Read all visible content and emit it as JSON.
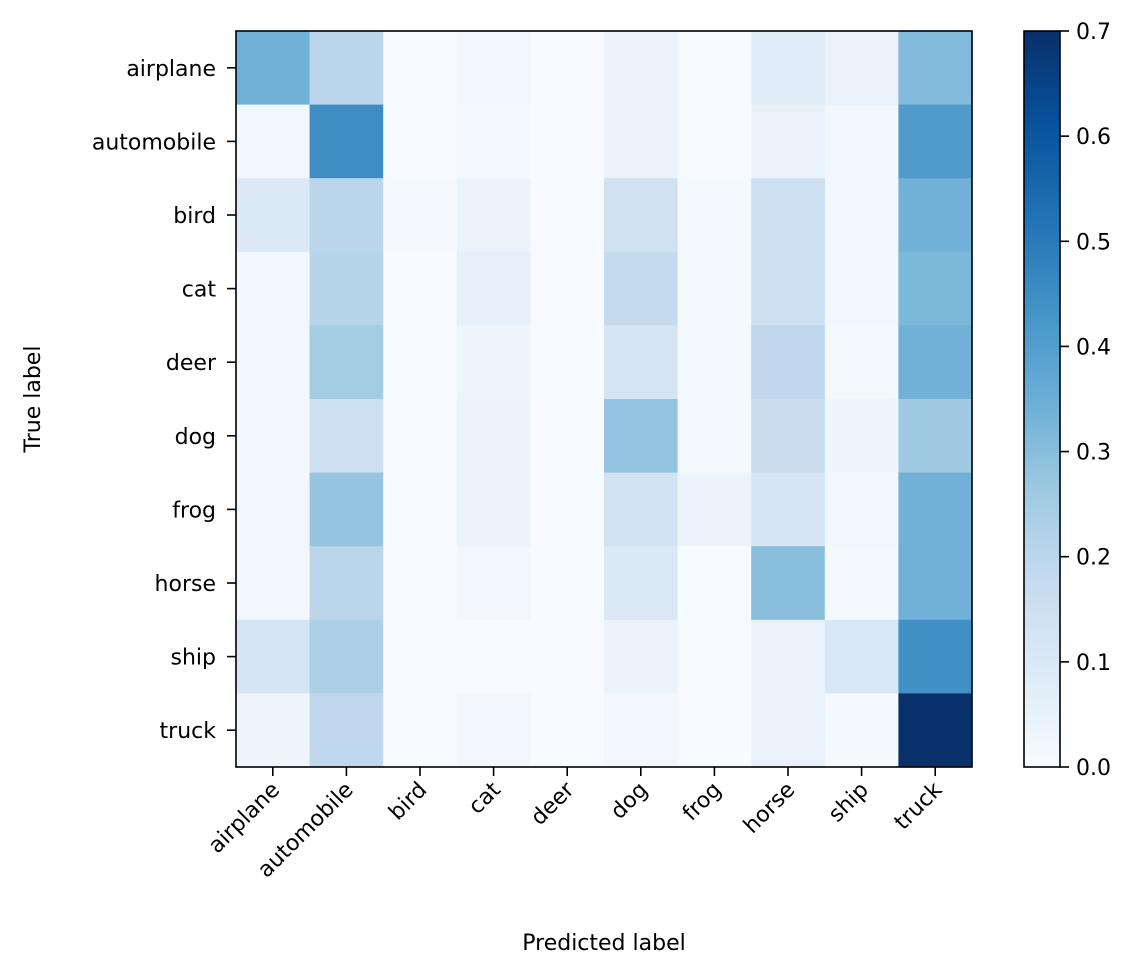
{
  "chart_data": {
    "type": "heatmap",
    "title": "",
    "xlabel": "Predicted label",
    "ylabel": "True label",
    "x_categories": [
      "airplane",
      "automobile",
      "bird",
      "cat",
      "deer",
      "dog",
      "frog",
      "horse",
      "ship",
      "truck"
    ],
    "y_categories": [
      "airplane",
      "automobile",
      "bird",
      "cat",
      "deer",
      "dog",
      "frog",
      "horse",
      "ship",
      "truck"
    ],
    "values": [
      [
        0.34,
        0.2,
        0.0,
        0.02,
        0.0,
        0.04,
        0.0,
        0.08,
        0.05,
        0.31
      ],
      [
        0.02,
        0.45,
        0.0,
        0.01,
        0.0,
        0.04,
        0.0,
        0.05,
        0.02,
        0.41
      ],
      [
        0.1,
        0.2,
        0.01,
        0.04,
        0.0,
        0.14,
        0.01,
        0.15,
        0.02,
        0.34
      ],
      [
        0.02,
        0.21,
        0.0,
        0.06,
        0.0,
        0.18,
        0.01,
        0.15,
        0.02,
        0.32
      ],
      [
        0.02,
        0.25,
        0.0,
        0.03,
        0.0,
        0.12,
        0.01,
        0.19,
        0.01,
        0.34
      ],
      [
        0.02,
        0.15,
        0.0,
        0.04,
        0.0,
        0.28,
        0.01,
        0.16,
        0.03,
        0.26
      ],
      [
        0.02,
        0.28,
        0.0,
        0.04,
        0.0,
        0.13,
        0.04,
        0.12,
        0.02,
        0.34
      ],
      [
        0.02,
        0.2,
        0.0,
        0.02,
        0.0,
        0.1,
        0.0,
        0.3,
        0.01,
        0.34
      ],
      [
        0.12,
        0.23,
        0.0,
        0.0,
        0.0,
        0.04,
        0.0,
        0.05,
        0.11,
        0.44
      ],
      [
        0.03,
        0.19,
        0.0,
        0.02,
        0.0,
        0.02,
        0.0,
        0.05,
        0.01,
        0.7
      ]
    ],
    "colormap": "Blues",
    "colorbar": {
      "min": 0.0,
      "max": 0.7,
      "ticks": [
        "0.0",
        "0.1",
        "0.2",
        "0.3",
        "0.4",
        "0.5",
        "0.6",
        "0.7"
      ]
    },
    "grid": false,
    "legend": "colorbar-right"
  },
  "colors": {
    "blues_scale": [
      "#f7fbff",
      "#deebf7",
      "#c6dbef",
      "#9ecae1",
      "#6baed6",
      "#4292c6",
      "#2171b5",
      "#08519c",
      "#08306b"
    ],
    "axis": "#000000",
    "background": "#ffffff"
  }
}
